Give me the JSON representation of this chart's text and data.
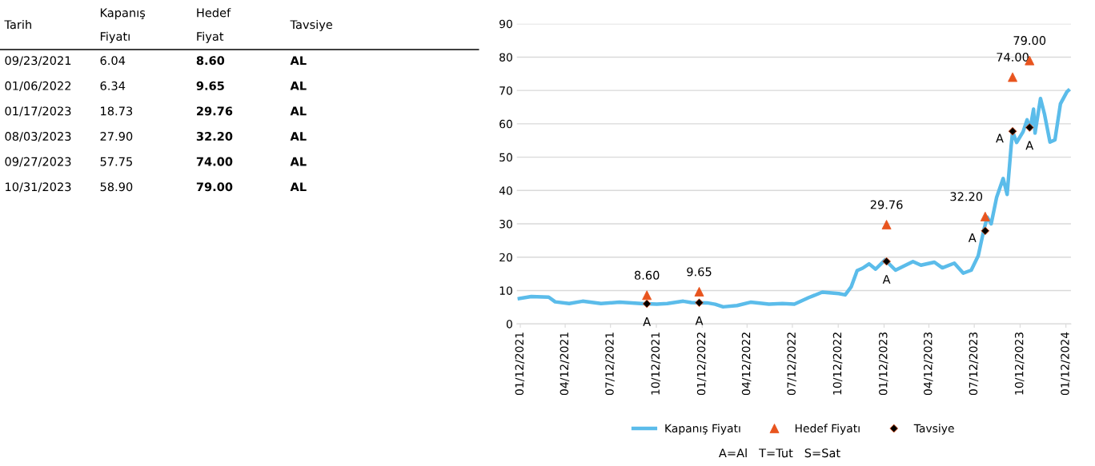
{
  "chart_data": {
    "type": "line",
    "annotations": [
      "Tarih",
      "Kapanış\nFiyatı",
      "Hedef\nFiyat",
      "Tavsiye",
      "09/23/2021",
      "6.04",
      "8.60",
      "AL",
      "01/06/2022",
      "6.34",
      "9.65",
      "AL",
      "01/17/2023",
      "18.73",
      "29.76",
      "AL",
      "08/03/2023",
      "27.90",
      "32.20",
      "AL",
      "09/27/2023",
      "57.75",
      "74.00",
      "AL",
      "10/31/2023",
      "58.90",
      "79.00",
      "AL",
      "A=Al   T=Tut   S=Sat"
    ],
    "series": [
      {
        "name": "Kapanış Fiyatı",
        "color": "#5bbcea",
        "marker": "none",
        "line_style": "solid",
        "x": [
          "2021-01-10",
          "2021-02-03",
          "2021-03-10",
          "2021-03-23",
          "2021-04-20",
          "2021-05-17",
          "2021-06-23",
          "2021-07-30",
          "2021-09-11",
          "2021-10-13",
          "2021-11-03",
          "2021-12-05",
          "2021-12-21",
          "2022-01-22",
          "2022-02-07",
          "2022-02-23",
          "2022-03-23",
          "2022-04-19",
          "2022-05-26",
          "2022-06-22",
          "2022-07-16",
          "2022-08-14",
          "2022-09-10",
          "2022-10-13",
          "2022-10-26",
          "2022-11-07",
          "2022-11-19",
          "2022-11-30",
          "2022-12-13",
          "2022-12-26",
          "2023-01-14",
          "2023-02-04",
          "2023-03-11",
          "2023-03-27",
          "2023-04-23",
          "2023-05-09",
          "2023-06-02",
          "2023-06-20",
          "2023-07-06",
          "2023-07-20",
          "2023-07-31",
          "2023-08-07",
          "2023-08-15",
          "2023-08-26",
          "2023-09-08",
          "2023-09-16",
          "2023-09-24",
          "2023-09-27",
          "2023-10-05",
          "2023-10-18",
          "2023-10-26",
          "2023-11-01",
          "2023-11-08",
          "2023-11-11",
          "2023-11-22",
          "2023-11-30",
          "2023-12-11",
          "2023-12-21",
          "2024-01-01",
          "2024-01-14",
          "2024-01-17"
        ],
        "values": [
          7.6,
          8.2,
          8.0,
          6.6,
          6.1,
          6.8,
          6.1,
          6.5,
          6.1,
          5.9,
          6.1,
          6.8,
          6.4,
          6.3,
          5.9,
          5.1,
          5.5,
          6.5,
          5.9,
          6.1,
          5.9,
          7.9,
          9.5,
          9.1,
          8.7,
          11.1,
          16,
          16.7,
          18,
          16.4,
          19.2,
          16.1,
          18.7,
          17.6,
          18.5,
          16.8,
          18.2,
          15.2,
          16.1,
          20.4,
          28,
          32,
          30,
          38,
          43.6,
          38.8,
          53.2,
          57.6,
          54.4,
          57.6,
          61.2,
          58.4,
          64.4,
          57.2,
          67.6,
          62.9,
          54.5,
          55.2,
          66,
          69.6,
          70
        ]
      },
      {
        "name": "Hedef Fiyatı",
        "type": "scatter",
        "color": "#e8541e",
        "marker": "triangle",
        "x": [
          "2021-09-23",
          "2022-01-06",
          "2023-01-17",
          "2023-08-03",
          "2023-09-27",
          "2023-10-31"
        ],
        "values": [
          8.6,
          9.65,
          29.76,
          32.2,
          74.0,
          79.0
        ],
        "value_labels": [
          "8.60",
          "9.65",
          "29.76",
          "32.20",
          "74.00",
          "79.00"
        ]
      },
      {
        "name": "Tavsiye",
        "type": "scatter",
        "color": "#000000",
        "marker": "diamond",
        "x": [
          "2021-09-23",
          "2022-01-06",
          "2023-01-17",
          "2023-08-03",
          "2023-09-27",
          "2023-10-31"
        ],
        "values": [
          6.04,
          6.34,
          18.73,
          27.9,
          57.75,
          58.9
        ],
        "value_labels": [
          "A",
          "A",
          "A",
          "A",
          "A",
          "A"
        ]
      }
    ],
    "xlim": [
      "2021-01-05",
      "2024-01-22"
    ],
    "xticks": [
      {
        "value": "2021-01-12",
        "label": "01/12/2021"
      },
      {
        "value": "2021-04-12",
        "label": "04/12/2021"
      },
      {
        "value": "2021-07-12",
        "label": "07/12/2021"
      },
      {
        "value": "2021-10-12",
        "label": "10/12/2021"
      },
      {
        "value": "2022-01-12",
        "label": "01/12/2022"
      },
      {
        "value": "2022-04-12",
        "label": "04/12/2022"
      },
      {
        "value": "2022-07-12",
        "label": "07/12/2022"
      },
      {
        "value": "2022-10-12",
        "label": "10/12/2022"
      },
      {
        "value": "2023-01-12",
        "label": "01/12/2023"
      },
      {
        "value": "2023-04-12",
        "label": "04/12/2023"
      },
      {
        "value": "2023-07-12",
        "label": "07/12/2023"
      },
      {
        "value": "2023-10-12",
        "label": "10/12/2023"
      },
      {
        "value": "2024-01-12",
        "label": "01/12/2024"
      }
    ],
    "ylim": [
      0,
      90
    ],
    "yticks": [
      0,
      10,
      20,
      30,
      40,
      50,
      60,
      70,
      80,
      90
    ],
    "grid": "y",
    "legend": "bottom"
  }
}
